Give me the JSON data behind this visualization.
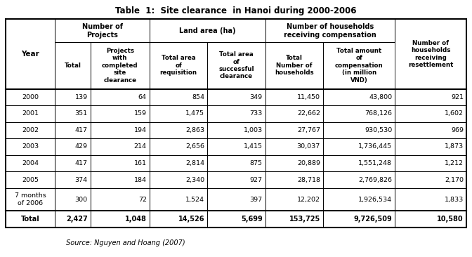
{
  "title": "Table  1:  Site clearance  in Hanoi during 2000-2006",
  "source": "Source: Nguyen and Hoang (2007)",
  "rows": [
    [
      "2000",
      "139",
      "64",
      "854",
      "349",
      "11,450",
      "43,800",
      "921"
    ],
    [
      "2001",
      "351",
      "159",
      "1,475",
      "733",
      "22,662",
      "768,126",
      "1,602"
    ],
    [
      "2002",
      "417",
      "194",
      "2,863",
      "1,003",
      "27,767",
      "930,530",
      "969"
    ],
    [
      "2003",
      "429",
      "214",
      "2,656",
      "1,415",
      "30,037",
      "1,736,445",
      "1,873"
    ],
    [
      "2004",
      "417",
      "161",
      "2,814",
      "875",
      "20,889",
      "1,551,248",
      "1,212"
    ],
    [
      "2005",
      "374",
      "184",
      "2,340",
      "927",
      "28,718",
      "2,769,826",
      "2,170"
    ],
    [
      "7 months\nof 2006",
      "300",
      "72",
      "1,524",
      "397",
      "12,202",
      "1,926,534",
      "1,833"
    ],
    [
      "Total",
      "2,427",
      "1,048",
      "14,526",
      "5,699",
      "153,725",
      "9,726,509",
      "10,580"
    ]
  ],
  "col_ratios": [
    0.088,
    0.063,
    0.105,
    0.103,
    0.103,
    0.103,
    0.128,
    0.127
  ],
  "bg_color": "#f5f5f0",
  "header_bg": "#f5f5f0"
}
